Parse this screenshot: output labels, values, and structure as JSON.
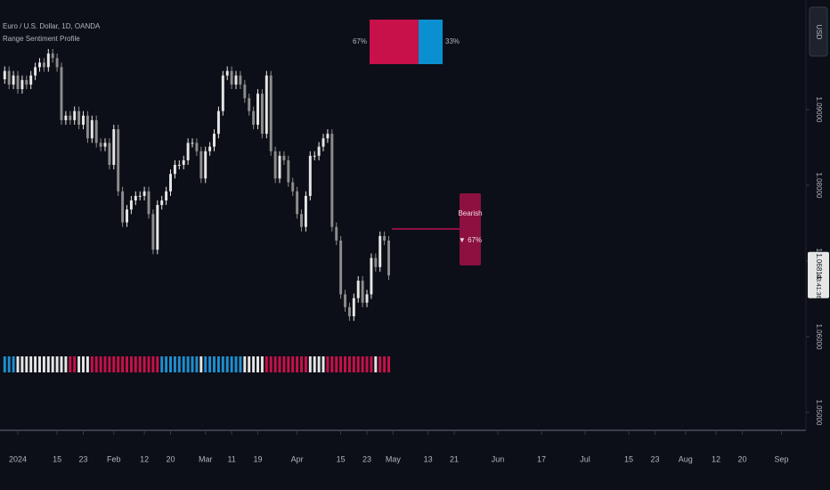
{
  "chart_data": {
    "type": "candlestick",
    "title": "Euro / U.S. Dollar, 1D, OANDA",
    "subtitle": "Range Sentiment Profile",
    "currency": "USD",
    "x": [
      -3,
      -2,
      -1,
      0,
      1,
      2,
      3,
      4,
      5,
      6,
      7,
      8,
      9,
      10,
      11,
      12,
      13,
      14,
      15,
      16,
      17,
      18,
      19,
      20,
      21,
      22,
      23,
      24,
      25,
      26,
      27,
      28,
      29,
      30,
      31,
      32,
      33,
      34,
      35,
      36,
      37,
      38,
      39,
      40,
      41,
      42,
      43,
      44,
      45,
      46,
      47,
      48,
      49,
      50,
      51,
      52,
      53,
      54,
      55,
      56,
      57,
      58,
      59,
      60,
      61,
      62,
      63,
      64,
      65,
      66,
      67,
      68,
      69,
      70,
      71,
      72,
      73,
      74,
      75,
      76,
      77,
      78,
      79,
      80,
      81,
      82,
      83,
      84,
      85
    ],
    "open": [
      1.094,
      1.0951,
      1.0933,
      1.0945,
      1.0927,
      1.0939,
      1.0933,
      1.0945,
      1.0956,
      1.0962,
      1.0956,
      1.0974,
      1.0968,
      1.0956,
      1.0886,
      1.0892,
      1.0886,
      1.0898,
      1.088,
      1.0892,
      1.0862,
      1.0886,
      1.0856,
      1.0851,
      1.0856,
      1.0827,
      1.0874,
      1.0792,
      1.0751,
      1.0768,
      1.078,
      1.0786,
      1.0786,
      1.0792,
      1.0762,
      1.0715,
      1.0774,
      1.078,
      1.0792,
      1.0815,
      1.0827,
      1.0827,
      1.0833,
      1.0856,
      1.0856,
      1.0845,
      1.0809,
      1.0845,
      1.0851,
      1.0868,
      1.0898,
      1.0945,
      1.0951,
      1.0933,
      1.0945,
      1.0933,
      1.0915,
      1.0898,
      1.088,
      1.0921,
      1.0868,
      1.0945,
      1.0845,
      1.0809,
      1.0839,
      1.0833,
      1.0804,
      1.0792,
      1.0762,
      1.0745,
      1.0786,
      1.0839,
      1.0839,
      1.0851,
      1.0862,
      1.0868,
      1.0745,
      1.0727,
      1.0656,
      1.0639,
      1.0627,
      1.0651,
      1.0674,
      1.0645,
      1.0656,
      1.0704,
      1.0692,
      1.0733,
      1.0727
    ],
    "high": [
      1.0957,
      1.0957,
      1.0951,
      1.0951,
      1.0945,
      1.0945,
      1.0951,
      1.0962,
      1.0968,
      1.0968,
      1.098,
      1.098,
      1.0974,
      1.0962,
      1.0898,
      1.0898,
      1.0904,
      1.0904,
      1.0898,
      1.0898,
      1.0892,
      1.0892,
      1.0862,
      1.0862,
      1.0862,
      1.088,
      1.088,
      1.0798,
      1.0774,
      1.0786,
      1.0792,
      1.0792,
      1.0798,
      1.0798,
      1.0768,
      1.078,
      1.0786,
      1.0798,
      1.0821,
      1.0833,
      1.0833,
      1.0839,
      1.0862,
      1.0862,
      1.0862,
      1.0851,
      1.0851,
      1.0857,
      1.0874,
      1.0904,
      1.0951,
      1.0957,
      1.0957,
      1.0951,
      1.0951,
      1.0939,
      1.0921,
      1.0904,
      1.0927,
      1.0927,
      1.0951,
      1.0951,
      1.0851,
      1.0845,
      1.0845,
      1.0839,
      1.081,
      1.0798,
      1.0768,
      1.0792,
      1.0845,
      1.0845,
      1.0857,
      1.0868,
      1.0874,
      1.0874,
      1.0751,
      1.0733,
      1.0662,
      1.0645,
      1.0657,
      1.068,
      1.068,
      1.0662,
      1.071,
      1.071,
      1.0739,
      1.0739,
      1.0733
    ],
    "low": [
      1.0934,
      1.0927,
      1.0927,
      1.0921,
      1.0921,
      1.0927,
      1.0927,
      1.0939,
      1.095,
      1.095,
      1.095,
      1.0962,
      1.095,
      1.088,
      1.088,
      1.088,
      1.088,
      1.0874,
      1.0874,
      1.0856,
      1.0856,
      1.085,
      1.0845,
      1.0845,
      1.0821,
      1.0821,
      1.0786,
      1.0745,
      1.0745,
      1.0762,
      1.0774,
      1.078,
      1.078,
      1.0756,
      1.0709,
      1.0709,
      1.0768,
      1.0774,
      1.0786,
      1.0809,
      1.0821,
      1.0821,
      1.0827,
      1.085,
      1.0839,
      1.0803,
      1.0803,
      1.0839,
      1.0845,
      1.0862,
      1.0892,
      1.0939,
      1.0927,
      1.0927,
      1.0927,
      1.0909,
      1.0892,
      1.0874,
      1.0874,
      1.0862,
      1.0862,
      1.0839,
      1.0803,
      1.0803,
      1.0827,
      1.0798,
      1.0786,
      1.0756,
      1.0739,
      1.0739,
      1.078,
      1.0833,
      1.0833,
      1.0845,
      1.0856,
      1.0739,
      1.0721,
      1.065,
      1.0633,
      1.0621,
      1.0621,
      1.0645,
      1.0639,
      1.0639,
      1.065,
      1.0686,
      1.0686,
      1.0721,
      1.0675
    ],
    "close": [
      1.0951,
      1.0933,
      1.0945,
      1.0927,
      1.0939,
      1.0933,
      1.0945,
      1.0956,
      1.0962,
      1.0956,
      1.0974,
      1.0968,
      1.0956,
      1.0886,
      1.0892,
      1.0886,
      1.0898,
      1.088,
      1.0892,
      1.0862,
      1.0886,
      1.0856,
      1.0851,
      1.0856,
      1.0827,
      1.0874,
      1.0792,
      1.0751,
      1.0768,
      1.078,
      1.0786,
      1.0786,
      1.0792,
      1.0762,
      1.0715,
      1.0774,
      1.078,
      1.0792,
      1.0815,
      1.0827,
      1.0827,
      1.0833,
      1.0856,
      1.0856,
      1.0845,
      1.0809,
      1.0845,
      1.0851,
      1.0868,
      1.0898,
      1.0945,
      1.0951,
      1.0933,
      1.0945,
      1.0933,
      1.0915,
      1.0898,
      1.088,
      1.0921,
      1.0868,
      1.0945,
      1.0845,
      1.0809,
      1.0839,
      1.0833,
      1.0804,
      1.0792,
      1.0762,
      1.0745,
      1.0786,
      1.0839,
      1.0839,
      1.0851,
      1.0862,
      1.0868,
      1.0745,
      1.0727,
      1.0656,
      1.0639,
      1.0627,
      1.0651,
      1.0674,
      1.0645,
      1.0656,
      1.0704,
      1.0692,
      1.0733,
      1.0727,
      1.0681
    ],
    "up_color": "#e6e6e6",
    "down_color": "#8c8c8c",
    "xlim": [
      -4.08,
      180.6
    ],
    "xticks": [
      {
        "value": 0,
        "label": "2024"
      },
      {
        "value": 9,
        "label": "15"
      },
      {
        "value": 15,
        "label": "23"
      },
      {
        "value": 22,
        "label": "Feb"
      },
      {
        "value": 29,
        "label": "12"
      },
      {
        "value": 35,
        "label": "20"
      },
      {
        "value": 43,
        "label": "Mar"
      },
      {
        "value": 49,
        "label": "11"
      },
      {
        "value": 55,
        "label": "19"
      },
      {
        "value": 64,
        "label": "Apr"
      },
      {
        "value": 74,
        "label": "15"
      },
      {
        "value": 80,
        "label": "23"
      },
      {
        "value": 86,
        "label": "May"
      },
      {
        "value": 94,
        "label": "13"
      },
      {
        "value": 100,
        "label": "21"
      },
      {
        "value": 110,
        "label": "Jun"
      },
      {
        "value": 120,
        "label": "17"
      },
      {
        "value": 130,
        "label": "Jul"
      },
      {
        "value": 140,
        "label": "15"
      },
      {
        "value": 146,
        "label": "23"
      },
      {
        "value": 153,
        "label": "Aug"
      },
      {
        "value": 160,
        "label": "12"
      },
      {
        "value": 166,
        "label": "20"
      },
      {
        "value": 175,
        "label": "Sep"
      }
    ],
    "ylim": [
      1.04776,
      1.10447
    ],
    "yticks": [
      {
        "value": 1.05,
        "label": "1.05000"
      },
      {
        "value": 1.06,
        "label": "1.06000"
      },
      {
        "value": 1.07,
        "label": "1.07000"
      },
      {
        "value": 1.08,
        "label": "1.08000"
      },
      {
        "value": 1.09,
        "label": "1.09000"
      }
    ],
    "last_price": 1.06814,
    "countdown": "03:41:36",
    "strip_segments": [
      {
        "from": -3,
        "to": -1,
        "color": "#1e8fd0"
      },
      {
        "from": 0,
        "to": 11,
        "color": "#e6e6e6"
      },
      {
        "from": 12,
        "to": 13,
        "color": "#c8104a"
      },
      {
        "from": 14,
        "to": 16,
        "color": "#e6e6e6"
      },
      {
        "from": 17,
        "to": 32,
        "color": "#c8104a"
      },
      {
        "from": 33,
        "to": 41,
        "color": "#1e8fd0"
      },
      {
        "from": 42,
        "to": 42,
        "color": "#e6e6e6"
      },
      {
        "from": 43,
        "to": 51,
        "color": "#1e8fd0"
      },
      {
        "from": 52,
        "to": 56,
        "color": "#e6e6e6"
      },
      {
        "from": 57,
        "to": 66,
        "color": "#c8104a"
      },
      {
        "from": 67,
        "to": 70,
        "color": "#e6e6e6"
      },
      {
        "from": 71,
        "to": 81,
        "color": "#c8104a"
      },
      {
        "from": 82,
        "to": 82,
        "color": "#e6e6e6"
      },
      {
        "from": 83,
        "to": 85,
        "color": "#c8104a"
      }
    ],
    "sentiment": {
      "values": [
        67,
        33
      ],
      "value_labels": [
        "67%",
        "33%"
      ],
      "colors": [
        "#c8104a",
        "#0a90d0"
      ],
      "signal": "Bearish",
      "signal_label": "▼ 67%",
      "signal_color": "#8c1040"
    }
  }
}
